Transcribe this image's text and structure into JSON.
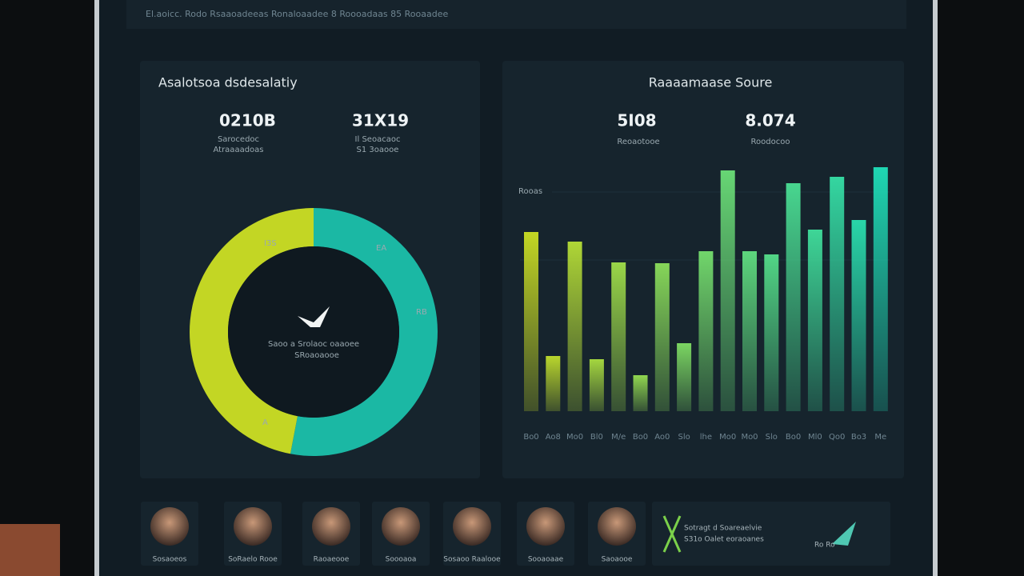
{
  "nav": {
    "items": "El.aoicc.   Rodo   Rsaaoadeeas   Ronaloaadee   8   Roooadaas   85   Rooaadee"
  },
  "left_panel": {
    "title": "Asalotsoa dsdesalatiy",
    "stats": [
      {
        "value": "0210B",
        "label_1": "Sarocedoc",
        "label_2": "Atraaaadoas"
      },
      {
        "value": "31X19",
        "label_1": "Il Seoacaoc",
        "label_2": "S1 3oaooe"
      }
    ],
    "donut": {
      "center_1": "Saoo a Srolaoc oaaoee",
      "center_2": "SRoaoaooe",
      "labels": [
        "I3S",
        "EA",
        "RB",
        "A"
      ],
      "segments": [
        {
          "value": 53,
          "color": "#1bb8a4"
        },
        {
          "value": 47,
          "color": "#c3d624"
        }
      ]
    }
  },
  "right_panel": {
    "title": "Raaaamaase Soure",
    "stats": [
      {
        "value": "5I08",
        "label": "Reoaotooe"
      },
      {
        "value": "8.074",
        "label": "Roodocoo"
      }
    ],
    "bars": {
      "axis_label": "Rooas",
      "color_start": "#c3d624",
      "color_end": "#1fd6b2",
      "categories": [
        "Bo0",
        "Ao8",
        "Mo0",
        "Bl0",
        "M/e",
        "Bo0",
        "Ao0",
        "Slo",
        "lhe",
        "Mo0",
        "Mo0",
        "Slo",
        "Bo0",
        "Ml0",
        "Qo0",
        "Bo3",
        "Me"
      ],
      "values": [
        224,
        69,
        212,
        65,
        186,
        45,
        185,
        85,
        200,
        301,
        200,
        196,
        285,
        227,
        293,
        239,
        305
      ]
    }
  },
  "people": [
    "Sosaoeos",
    "SoRaelo Rooe",
    "Raoaeooe",
    "Soooaoa",
    "Sosaoo Raalooe",
    "Sooaoaae",
    "Saoaooe"
  ],
  "info_card": {
    "line_1": "Sotragt d Soareaelvie",
    "line_2": "S31o Oalet eoraoanes",
    "line_3": "Ro Ro"
  }
}
